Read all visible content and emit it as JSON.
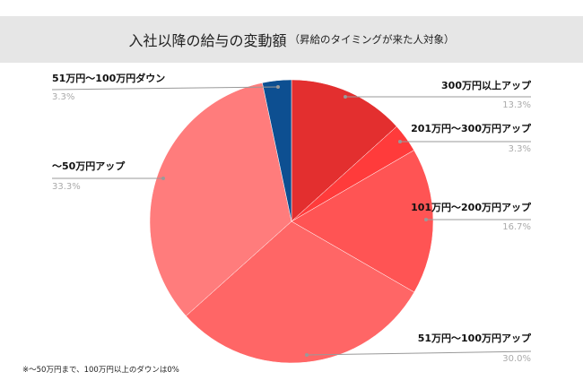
{
  "chart_data": {
    "type": "pie",
    "title": "入社以降の給与の変動額",
    "subtitle": "（昇給のタイミングが来た人対象）",
    "slices": [
      {
        "label": "300万円以上アップ",
        "value": 13.3,
        "pct_label": "13.3%",
        "color": "#e32f2f"
      },
      {
        "label": "201万円〜300万円アップ",
        "value": 3.3,
        "pct_label": "3.3%",
        "color": "#ff3b3b"
      },
      {
        "label": "101万円〜200万円アップ",
        "value": 16.7,
        "pct_label": "16.7%",
        "color": "#ff5454"
      },
      {
        "label": "51万円〜100万円アップ",
        "value": 30.0,
        "pct_label": "30.0%",
        "color": "#ff6666"
      },
      {
        "label": "〜50万円アップ",
        "value": 33.3,
        "pct_label": "33.3%",
        "color": "#ff7c7c"
      },
      {
        "label": "51万円〜100万円ダウン",
        "value": 3.3,
        "pct_label": "3.3%",
        "color": "#0d4f91"
      }
    ],
    "note": "※〜50万円まで、100万円以上のダウンは0%"
  }
}
